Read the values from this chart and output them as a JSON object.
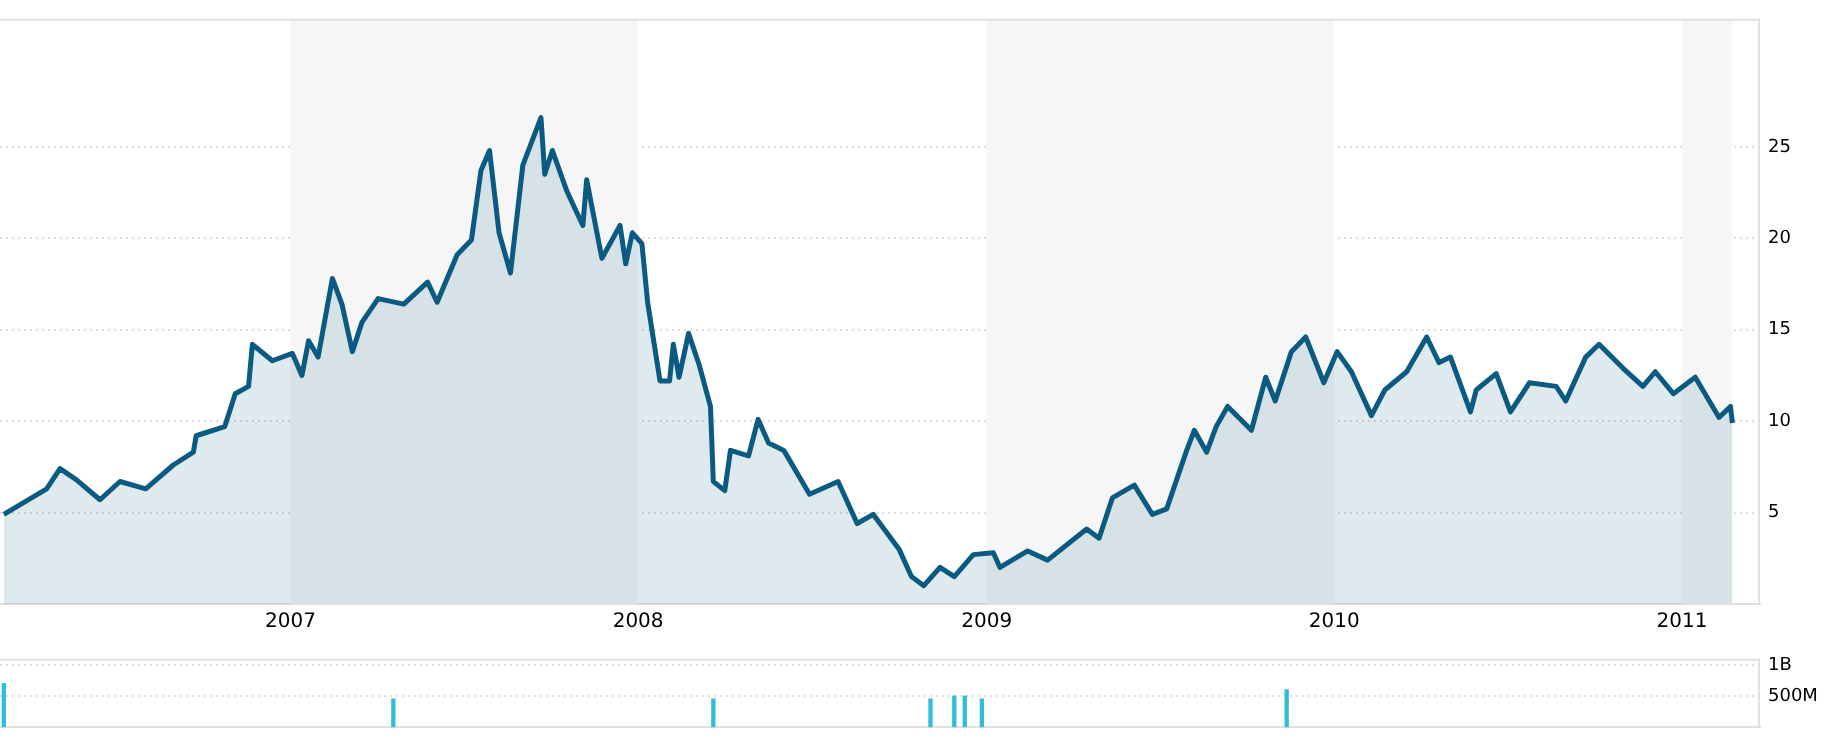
{
  "chart_data": [
    {
      "type": "area",
      "color": "#0a5a82",
      "x": [
        "2006-03-06",
        "2006-04-20",
        "2006-05-04",
        "2006-05-21",
        "2006-06-15",
        "2006-07-06",
        "2006-08-02",
        "2006-08-31",
        "2006-09-21",
        "2006-09-24",
        "2006-10-24",
        "2006-11-04",
        "2006-11-18",
        "2006-11-22",
        "2006-12-13",
        "2007-01-03",
        "2007-01-13",
        "2007-01-20",
        "2007-01-30",
        "2007-02-14",
        "2007-02-24",
        "2007-03-07",
        "2007-03-17",
        "2007-04-03",
        "2007-04-30",
        "2007-05-25",
        "2007-06-04",
        "2007-06-25",
        "2007-07-10",
        "2007-07-20",
        "2007-07-29",
        "2007-08-08",
        "2007-08-20",
        "2007-09-02",
        "2007-09-21",
        "2007-09-25",
        "2007-10-03",
        "2007-10-18",
        "2007-11-04",
        "2007-11-08",
        "2007-11-24",
        "2007-12-13",
        "2007-12-19",
        "2007-12-26",
        "2008-01-05",
        "2008-01-11",
        "2008-01-24",
        "2008-02-03",
        "2008-02-07",
        "2008-02-13",
        "2008-02-23",
        "2008-03-05",
        "2008-03-17",
        "2008-03-20",
        "2008-04-01",
        "2008-04-07",
        "2008-04-26",
        "2008-05-06",
        "2008-05-17",
        "2008-06-02",
        "2008-06-29",
        "2008-07-29",
        "2008-08-18",
        "2008-09-04",
        "2008-10-01",
        "2008-10-14",
        "2008-10-27",
        "2008-11-13",
        "2008-11-28",
        "2008-12-18",
        "2009-01-08",
        "2009-01-15",
        "2009-02-13",
        "2009-03-06",
        "2009-04-16",
        "2009-04-29",
        "2009-05-13",
        "2009-06-05",
        "2009-06-24",
        "2009-07-09",
        "2009-07-30",
        "2009-08-07",
        "2009-08-20",
        "2009-08-30",
        "2009-09-11",
        "2009-10-06",
        "2009-10-21",
        "2009-10-31",
        "2009-11-17",
        "2009-12-02",
        "2009-12-21",
        "2010-01-04",
        "2010-01-19",
        "2010-02-09",
        "2010-02-23",
        "2010-03-18",
        "2010-04-08",
        "2010-04-21",
        "2010-05-03",
        "2010-05-24",
        "2010-05-30",
        "2010-06-20",
        "2010-07-05",
        "2010-07-25",
        "2010-08-22",
        "2010-09-01",
        "2010-09-22",
        "2010-10-06",
        "2010-10-31",
        "2010-11-21",
        "2010-12-04",
        "2010-12-23",
        "2011-01-15",
        "2011-02-09",
        "2011-02-21",
        "2011-02-23"
      ],
      "values": [
        4.9,
        6.3,
        7.4,
        6.8,
        5.7,
        6.7,
        6.3,
        7.6,
        8.3,
        9.2,
        9.7,
        11.5,
        11.9,
        14.2,
        13.3,
        13.7,
        12.5,
        14.4,
        13.5,
        17.8,
        16.4,
        13.8,
        15.4,
        16.7,
        16.4,
        17.6,
        16.5,
        19.1,
        19.9,
        23.7,
        24.8,
        20.3,
        18.1,
        24.0,
        26.6,
        23.5,
        24.8,
        22.6,
        20.7,
        23.2,
        18.9,
        20.7,
        18.6,
        20.3,
        19.7,
        16.5,
        12.2,
        12.2,
        14.2,
        12.4,
        14.8,
        13.1,
        10.8,
        6.7,
        6.2,
        8.4,
        8.1,
        10.1,
        8.8,
        8.4,
        6.0,
        6.7,
        4.4,
        4.9,
        3.0,
        1.5,
        1.0,
        2.0,
        1.5,
        2.7,
        2.8,
        2.0,
        2.9,
        2.4,
        4.1,
        3.6,
        5.8,
        6.5,
        4.9,
        5.2,
        8.4,
        9.5,
        8.3,
        9.7,
        10.8,
        9.5,
        12.4,
        11.1,
        13.8,
        14.6,
        12.1,
        13.8,
        12.7,
        10.3,
        11.7,
        12.7,
        14.6,
        13.2,
        13.5,
        10.5,
        11.7,
        12.6,
        10.5,
        12.1,
        11.9,
        11.1,
        13.5,
        14.2,
        12.9,
        11.9,
        12.7,
        11.5,
        12.4,
        10.2,
        10.8,
        9.9
      ],
      "xlim": [
        "2006-03-02",
        "2011-03-24"
      ],
      "xticks": [
        {
          "value": "2007-01-01",
          "label": "2007"
        },
        {
          "value": "2008-01-01",
          "label": "2008"
        },
        {
          "value": "2009-01-01",
          "label": "2009"
        },
        {
          "value": "2010-01-01",
          "label": "2010"
        },
        {
          "value": "2011-01-01",
          "label": "2011"
        }
      ],
      "ylim": [
        0,
        32
      ],
      "yticks": [
        5,
        10,
        15,
        20,
        25
      ],
      "grid": "y",
      "bands": [
        {
          "axis": "x",
          "from": "2007-01-01",
          "to": "2008-01-01",
          "color": "#f6f6f6"
        },
        {
          "axis": "x",
          "from": "2009-01-01",
          "to": "2010-01-01",
          "color": "#f6f6f6"
        },
        {
          "axis": "x",
          "from": "2011-01-01",
          "to": "2011-02-23",
          "color": "#f6f6f6"
        }
      ]
    },
    {
      "type": "bar",
      "color": "#33bbdd",
      "x": [
        "2006-03-06",
        "2007-04-19",
        "2008-03-20",
        "2008-11-03",
        "2008-11-28",
        "2008-12-09",
        "2008-12-27",
        "2009-11-12"
      ],
      "values": [
        700000000,
        450000000,
        450000000,
        450000000,
        500000000,
        500000000,
        450000000,
        600000000
      ],
      "xlim": [
        "2006-03-02",
        "2011-03-24"
      ],
      "ylim": [
        0,
        1100000000
      ],
      "yticks": [
        {
          "value": 500000000,
          "label": "500M"
        },
        {
          "value": 1000000000,
          "label": "1B"
        }
      ],
      "grid": "y",
      "tick_labels": "y"
    }
  ]
}
